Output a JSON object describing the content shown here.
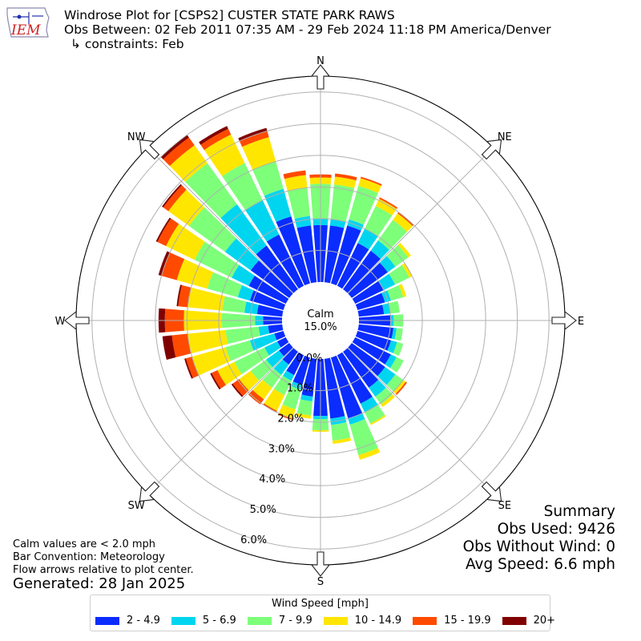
{
  "title": {
    "line1": "Windrose Plot for [CSPS2] CUSTER STATE PARK RAWS",
    "line2": "Obs Between: 02 Feb 2011 07:35 AM - 29 Feb 2024 11:18 PM America/Denver",
    "line3": "↳ constraints: Feb"
  },
  "logo": {
    "text": "IEM"
  },
  "summary": {
    "heading": "Summary",
    "obs_used": "Obs Used: 9426",
    "obs_without_wind": "Obs Without Wind: 0",
    "avg_speed": "Avg Speed: 6.6 mph"
  },
  "notes": {
    "calm": "Calm values are < 2.0 mph",
    "convention": "Bar Convention: Meteorology",
    "flow": "Flow arrows relative to plot center."
  },
  "generated": "Generated: 28 Jan 2025",
  "center": {
    "label": "Calm",
    "value": "15.0%"
  },
  "chart_data": {
    "type": "windrose",
    "units": "%",
    "rmax": 6.5,
    "calm_percent": 15.0,
    "radial_ticks": [
      0.0,
      1.0,
      2.0,
      3.0,
      4.0,
      5.0,
      6.0
    ],
    "radial_tick_labels": [
      "0.0%",
      "1.0%",
      "2.0%",
      "3.0%",
      "4.0%",
      "5.0%",
      "6.0%"
    ],
    "compass_labels": [
      "N",
      "NE",
      "E",
      "SE",
      "S",
      "SW",
      "W",
      "NW"
    ],
    "legend_title": "Wind Speed [mph]",
    "bins": [
      {
        "label": "2 - 4.9",
        "color": "#0a2cff"
      },
      {
        "label": "5 - 6.9",
        "color": "#00d5f0"
      },
      {
        "label": "7 - 9.9",
        "color": "#7dff7a"
      },
      {
        "label": "10 - 14.9",
        "color": "#ffe600"
      },
      {
        "label": "15 - 19.9",
        "color": "#ff4a00"
      },
      {
        "label": "20+",
        "color": "#800000"
      }
    ],
    "directions": [
      0,
      10,
      20,
      30,
      40,
      50,
      60,
      70,
      80,
      90,
      100,
      110,
      120,
      130,
      140,
      150,
      160,
      170,
      180,
      190,
      200,
      210,
      220,
      230,
      240,
      250,
      260,
      270,
      280,
      290,
      300,
      310,
      320,
      330,
      340,
      350
    ],
    "cumulative": [
      [
        1.8,
        2.0,
        3.1,
        3.3,
        3.4,
        3.4
      ],
      [
        1.8,
        2.0,
        3.1,
        3.35,
        3.45,
        3.45
      ],
      [
        1.9,
        2.1,
        3.2,
        3.45,
        3.5,
        3.5
      ],
      [
        1.5,
        2.0,
        2.8,
        3.05,
        3.1,
        3.1
      ],
      [
        1.5,
        1.9,
        2.7,
        2.95,
        3.0,
        3.0
      ],
      [
        1.4,
        1.7,
        2.2,
        2.3,
        2.3,
        2.3
      ],
      [
        1.0,
        1.4,
        1.9,
        2.0,
        2.0,
        2.0
      ],
      [
        0.9,
        1.1,
        1.5,
        1.6,
        1.6,
        1.6
      ],
      [
        0.8,
        1.0,
        1.3,
        1.3,
        1.3,
        1.3
      ],
      [
        1.0,
        1.1,
        1.4,
        1.4,
        1.4,
        1.4
      ],
      [
        1.1,
        1.2,
        1.4,
        1.4,
        1.4,
        1.4
      ],
      [
        1.1,
        1.3,
        1.5,
        1.5,
        1.5,
        1.5
      ],
      [
        1.25,
        1.45,
        1.7,
        1.7,
        1.7,
        1.7
      ],
      [
        1.3,
        1.7,
        2.0,
        2.1,
        2.15,
        2.15
      ],
      [
        1.4,
        1.75,
        2.05,
        2.15,
        2.15,
        2.15
      ],
      [
        1.7,
        2.0,
        2.4,
        2.45,
        2.45,
        2.45
      ],
      [
        2.0,
        2.2,
        3.2,
        3.35,
        3.35,
        3.35
      ],
      [
        1.9,
        2.1,
        2.6,
        2.7,
        2.7,
        2.7
      ],
      [
        1.8,
        1.9,
        2.25,
        2.3,
        2.3,
        2.3
      ],
      [
        1.2,
        1.35,
        1.8,
        1.9,
        1.9,
        1.9
      ],
      [
        0.9,
        1.05,
        1.7,
        2.0,
        2.05,
        2.05
      ],
      [
        0.7,
        0.9,
        1.4,
        1.95,
        2.0,
        2.0
      ],
      [
        0.5,
        0.9,
        1.4,
        1.85,
        2.05,
        2.05
      ],
      [
        0.4,
        0.9,
        1.5,
        1.95,
        2.2,
        2.25
      ],
      [
        0.3,
        0.75,
        1.8,
        2.4,
        2.6,
        2.65
      ],
      [
        0.3,
        1.1,
        1.9,
        3.0,
        3.2,
        3.25
      ],
      [
        0.45,
        0.75,
        1.8,
        3.0,
        3.5,
        3.8
      ],
      [
        0.6,
        0.85,
        1.9,
        3.1,
        3.7,
        3.9
      ],
      [
        0.8,
        1.2,
        1.9,
        3.0,
        3.3,
        3.35
      ],
      [
        1.1,
        1.5,
        2.5,
        3.5,
        4.0,
        4.1
      ],
      [
        1.3,
        1.9,
        3.2,
        4.2,
        4.5,
        4.55
      ],
      [
        1.5,
        2.5,
        3.9,
        4.7,
        4.9,
        4.95
      ],
      [
        1.7,
        3.3,
        4.9,
        5.6,
        5.9,
        6.0
      ],
      [
        1.8,
        3.0,
        4.3,
        5.3,
        5.5,
        5.6
      ],
      [
        2.2,
        3.1,
        4.0,
        4.8,
        5.0,
        5.1
      ],
      [
        1.8,
        2.1,
        3.0,
        3.4,
        3.55,
        3.55
      ]
    ]
  }
}
